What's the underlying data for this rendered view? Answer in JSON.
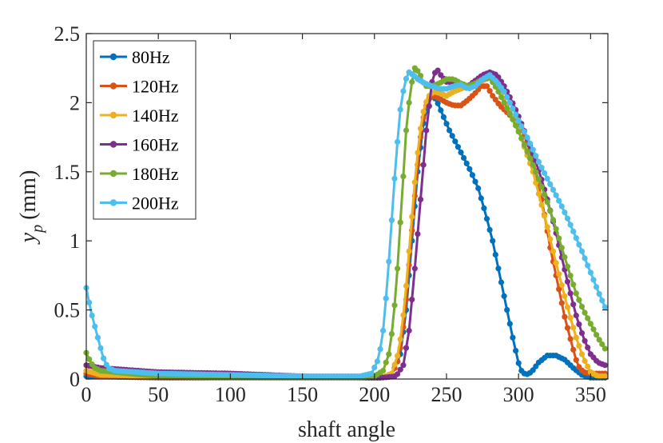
{
  "chart_data": {
    "type": "line",
    "title": "",
    "xlabel": "shaft angle",
    "ylabel_main": "y",
    "ylabel_sub": "p",
    "ylabel_unit": "(mm)",
    "xlim": [
      0,
      362
    ],
    "ylim": [
      0,
      2.5
    ],
    "xticks": [
      0,
      50,
      100,
      150,
      200,
      250,
      300,
      350
    ],
    "yticks": [
      0,
      0.5,
      1,
      1.5,
      2,
      2.5
    ],
    "ytick_labels": [
      "0",
      "0.5",
      "1",
      "1.5",
      "2",
      "2.5"
    ],
    "grid": false,
    "legend_position": "top-left",
    "marker_step_deg": 2,
    "series": [
      {
        "name": "80Hz",
        "color": "#0072BD",
        "points": [
          [
            0,
            0.02
          ],
          [
            50,
            0.01
          ],
          [
            100,
            0.01
          ],
          [
            150,
            0.01
          ],
          [
            190,
            0.01
          ],
          [
            205,
            0.01
          ],
          [
            212,
            0.03
          ],
          [
            218,
            0.18
          ],
          [
            222,
            0.5
          ],
          [
            226,
            1.0
          ],
          [
            230,
            1.5
          ],
          [
            234,
            1.85
          ],
          [
            238,
            2.03
          ],
          [
            240,
            2.05
          ],
          [
            243,
            2.02
          ],
          [
            247,
            1.92
          ],
          [
            252,
            1.8
          ],
          [
            257,
            1.7
          ],
          [
            262,
            1.6
          ],
          [
            267,
            1.5
          ],
          [
            272,
            1.38
          ],
          [
            277,
            1.2
          ],
          [
            282,
            1.0
          ],
          [
            287,
            0.75
          ],
          [
            292,
            0.5
          ],
          [
            297,
            0.25
          ],
          [
            301,
            0.07
          ],
          [
            305,
            0.03
          ],
          [
            309,
            0.05
          ],
          [
            314,
            0.12
          ],
          [
            320,
            0.17
          ],
          [
            326,
            0.17
          ],
          [
            332,
            0.14
          ],
          [
            338,
            0.08
          ],
          [
            344,
            0.03
          ],
          [
            350,
            0.01
          ],
          [
            356,
            0.01
          ],
          [
            360,
            0.01
          ]
        ]
      },
      {
        "name": "120Hz",
        "color": "#D95319",
        "points": [
          [
            0,
            0.04
          ],
          [
            10,
            0.02
          ],
          [
            50,
            0.01
          ],
          [
            100,
            0.01
          ],
          [
            150,
            0.01
          ],
          [
            190,
            0.01
          ],
          [
            205,
            0.01
          ],
          [
            212,
            0.03
          ],
          [
            217,
            0.15
          ],
          [
            221,
            0.45
          ],
          [
            225,
            0.95
          ],
          [
            229,
            1.45
          ],
          [
            233,
            1.85
          ],
          [
            237,
            2.02
          ],
          [
            241,
            2.05
          ],
          [
            245,
            2.03
          ],
          [
            250,
            2.0
          ],
          [
            255,
            1.98
          ],
          [
            260,
            1.98
          ],
          [
            265,
            2.02
          ],
          [
            270,
            2.07
          ],
          [
            274,
            2.12
          ],
          [
            278,
            2.12
          ],
          [
            282,
            2.05
          ],
          [
            287,
            1.98
          ],
          [
            292,
            1.93
          ],
          [
            297,
            1.88
          ],
          [
            302,
            1.8
          ],
          [
            307,
            1.7
          ],
          [
            312,
            1.5
          ],
          [
            317,
            1.25
          ],
          [
            322,
            0.95
          ],
          [
            327,
            0.7
          ],
          [
            332,
            0.45
          ],
          [
            337,
            0.25
          ],
          [
            341,
            0.1
          ],
          [
            345,
            0.05
          ],
          [
            350,
            0.04
          ],
          [
            355,
            0.04
          ],
          [
            360,
            0.04
          ]
        ]
      },
      {
        "name": "140Hz",
        "color": "#EDB120",
        "points": [
          [
            0,
            0.06
          ],
          [
            10,
            0.03
          ],
          [
            50,
            0.02
          ],
          [
            100,
            0.01
          ],
          [
            150,
            0.01
          ],
          [
            190,
            0.01
          ],
          [
            205,
            0.01
          ],
          [
            212,
            0.04
          ],
          [
            217,
            0.2
          ],
          [
            221,
            0.55
          ],
          [
            225,
            1.05
          ],
          [
            229,
            1.55
          ],
          [
            233,
            1.9
          ],
          [
            237,
            2.04
          ],
          [
            241,
            2.08
          ],
          [
            245,
            2.07
          ],
          [
            250,
            2.05
          ],
          [
            255,
            2.08
          ],
          [
            260,
            2.1
          ],
          [
            265,
            2.12
          ],
          [
            270,
            2.14
          ],
          [
            275,
            2.16
          ],
          [
            280,
            2.18
          ],
          [
            285,
            2.12
          ],
          [
            290,
            2.03
          ],
          [
            295,
            1.92
          ],
          [
            300,
            1.8
          ],
          [
            305,
            1.65
          ],
          [
            310,
            1.5
          ],
          [
            315,
            1.3
          ],
          [
            320,
            1.1
          ],
          [
            325,
            0.88
          ],
          [
            330,
            0.68
          ],
          [
            335,
            0.48
          ],
          [
            340,
            0.3
          ],
          [
            345,
            0.15
          ],
          [
            350,
            0.05
          ],
          [
            355,
            0.02
          ],
          [
            360,
            0.02
          ]
        ]
      },
      {
        "name": "160Hz",
        "color": "#7E2F8E",
        "points": [
          [
            0,
            0.1
          ],
          [
            10,
            0.08
          ],
          [
            50,
            0.05
          ],
          [
            100,
            0.04
          ],
          [
            150,
            0.02
          ],
          [
            190,
            0.01
          ],
          [
            205,
            0.01
          ],
          [
            215,
            0.02
          ],
          [
            220,
            0.1
          ],
          [
            224,
            0.35
          ],
          [
            228,
            0.8
          ],
          [
            232,
            1.3
          ],
          [
            236,
            1.8
          ],
          [
            240,
            2.15
          ],
          [
            243,
            2.25
          ],
          [
            246,
            2.2
          ],
          [
            250,
            2.15
          ],
          [
            255,
            2.15
          ],
          [
            260,
            2.13
          ],
          [
            265,
            2.12
          ],
          [
            270,
            2.16
          ],
          [
            275,
            2.2
          ],
          [
            280,
            2.22
          ],
          [
            285,
            2.2
          ],
          [
            290,
            2.12
          ],
          [
            295,
            2.02
          ],
          [
            300,
            1.9
          ],
          [
            305,
            1.77
          ],
          [
            310,
            1.63
          ],
          [
            315,
            1.48
          ],
          [
            320,
            1.3
          ],
          [
            325,
            1.1
          ],
          [
            330,
            0.88
          ],
          [
            335,
            0.66
          ],
          [
            340,
            0.46
          ],
          [
            345,
            0.3
          ],
          [
            350,
            0.18
          ],
          [
            355,
            0.12
          ],
          [
            360,
            0.1
          ]
        ]
      },
      {
        "name": "180Hz",
        "color": "#77AC30",
        "points": [
          [
            0,
            0.19
          ],
          [
            3,
            0.12
          ],
          [
            6,
            0.08
          ],
          [
            10,
            0.06
          ],
          [
            20,
            0.05
          ],
          [
            50,
            0.02
          ],
          [
            100,
            0.01
          ],
          [
            150,
            0.01
          ],
          [
            190,
            0.01
          ],
          [
            200,
            0.02
          ],
          [
            206,
            0.06
          ],
          [
            210,
            0.18
          ],
          [
            213,
            0.4
          ],
          [
            216,
            0.8
          ],
          [
            219,
            1.3
          ],
          [
            222,
            1.8
          ],
          [
            225,
            2.1
          ],
          [
            228,
            2.25
          ],
          [
            231,
            2.22
          ],
          [
            235,
            2.12
          ],
          [
            240,
            2.12
          ],
          [
            245,
            2.14
          ],
          [
            250,
            2.17
          ],
          [
            255,
            2.17
          ],
          [
            260,
            2.14
          ],
          [
            265,
            2.12
          ],
          [
            270,
            2.14
          ],
          [
            275,
            2.17
          ],
          [
            280,
            2.18
          ],
          [
            285,
            2.1
          ],
          [
            290,
            2.0
          ],
          [
            295,
            1.9
          ],
          [
            300,
            1.79
          ],
          [
            305,
            1.67
          ],
          [
            310,
            1.55
          ],
          [
            315,
            1.42
          ],
          [
            320,
            1.28
          ],
          [
            325,
            1.12
          ],
          [
            330,
            0.95
          ],
          [
            335,
            0.78
          ],
          [
            340,
            0.62
          ],
          [
            345,
            0.5
          ],
          [
            350,
            0.4
          ],
          [
            355,
            0.3
          ],
          [
            360,
            0.22
          ]
        ]
      },
      {
        "name": "200Hz",
        "color": "#4DBEEE",
        "points": [
          [
            0,
            0.66
          ],
          [
            3,
            0.5
          ],
          [
            6,
            0.38
          ],
          [
            9,
            0.26
          ],
          [
            12,
            0.15
          ],
          [
            15,
            0.08
          ],
          [
            20,
            0.06
          ],
          [
            50,
            0.04
          ],
          [
            100,
            0.03
          ],
          [
            150,
            0.02
          ],
          [
            190,
            0.02
          ],
          [
            198,
            0.04
          ],
          [
            203,
            0.15
          ],
          [
            206,
            0.35
          ],
          [
            209,
            0.7
          ],
          [
            212,
            1.15
          ],
          [
            215,
            1.6
          ],
          [
            218,
            1.95
          ],
          [
            221,
            2.15
          ],
          [
            224,
            2.22
          ],
          [
            227,
            2.2
          ],
          [
            230,
            2.17
          ],
          [
            235,
            2.14
          ],
          [
            240,
            2.12
          ],
          [
            245,
            2.1
          ],
          [
            250,
            2.1
          ],
          [
            255,
            2.12
          ],
          [
            260,
            2.13
          ],
          [
            265,
            2.1
          ],
          [
            270,
            2.12
          ],
          [
            275,
            2.17
          ],
          [
            280,
            2.2
          ],
          [
            285,
            2.15
          ],
          [
            290,
            2.08
          ],
          [
            295,
            1.98
          ],
          [
            300,
            1.87
          ],
          [
            305,
            1.77
          ],
          [
            310,
            1.66
          ],
          [
            315,
            1.55
          ],
          [
            320,
            1.45
          ],
          [
            325,
            1.35
          ],
          [
            330,
            1.25
          ],
          [
            335,
            1.14
          ],
          [
            340,
            1.02
          ],
          [
            345,
            0.9
          ],
          [
            350,
            0.77
          ],
          [
            355,
            0.64
          ],
          [
            360,
            0.52
          ]
        ]
      }
    ]
  }
}
